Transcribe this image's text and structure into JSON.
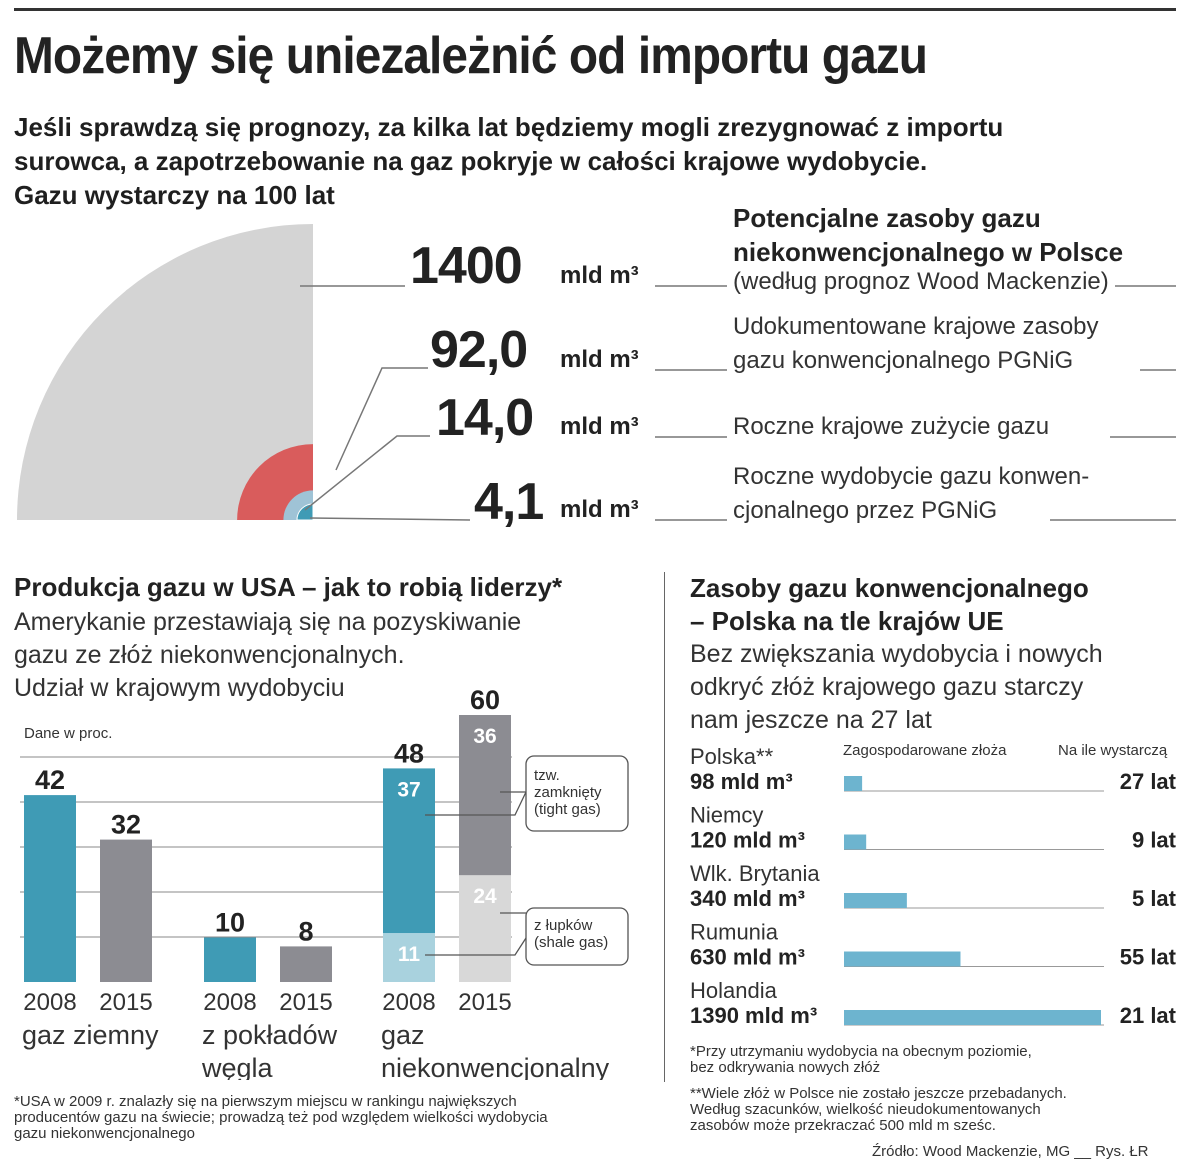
{
  "header": {
    "title": "Możemy się uniezależnić od importu gazu",
    "subtitle_lines": [
      "Jeśli sprawdzą się prognozy, za kilka lat będziemy mogli zrezygnować z importu",
      "surowca, a zapotrzebowanie na gaz pokryje w całości krajowe wydobycie.",
      "Gazu wystarczy na 100 lat"
    ]
  },
  "colors": {
    "gray_quarter": "#d4d4d4",
    "red_quarter": "#d95c5c",
    "teal": "#3f9bb5",
    "dark_gray": "#8c8c92",
    "light_teal": "#a9d2de",
    "light_gray": "#d8d8d8",
    "bar_blue": "#6db4cf"
  },
  "resources": {
    "unit": "mld m³",
    "items": [
      {
        "value": "1400",
        "desc_bold_lines": [
          "Potencjalne zasoby gazu",
          "niekonwencjonalnego w Polsce"
        ],
        "desc_lines": [
          "(według prognoz Wood Mackenzie)"
        ]
      },
      {
        "value": "92,0",
        "desc_lines": [
          "Udokumentowane krajowe zasoby",
          "gazu konwencjonalnego PGNiG"
        ]
      },
      {
        "value": "14,0",
        "desc_lines": [
          "Roczne krajowe zużycie gazu"
        ]
      },
      {
        "value": "4,1",
        "desc_lines": [
          "Roczne wydobycie gazu konwen-",
          "cjonalnego przez PGNiG"
        ]
      }
    ]
  },
  "usa": {
    "title": "Produkcja gazu w USA – jak to robią liderzy*",
    "subtitle_lines": [
      "Amerykanie przestawiają się na pozyskiwanie",
      "gazu ze złóż niekonwencjonalnych.",
      "Udział w krajowym wydobyciu"
    ],
    "unit_note": "Dane w proc.",
    "callout_tight": [
      "tzw.",
      "zamknięty",
      "(tight gas)"
    ],
    "callout_shale": [
      "z łupków",
      "(shale gas)"
    ],
    "footnote_lines": [
      "*USA w 2009 r. znalazły się na  pierwszym miejscu w rankingu największych",
      "producentów gazu na świecie; prowadzą też pod względem wielkości wydobycia",
      "gazu niekonwencjonalnego"
    ]
  },
  "eu": {
    "title_lines": [
      "Zasoby gazu konwencjonalnego",
      "– Polska na tle krajów UE"
    ],
    "subtitle_lines": [
      "Bez zwiększania wydobycia i nowych",
      "odkryć złóż krajowego gazu starczy",
      "nam jeszcze na 27 lat"
    ],
    "col_fields": "Zagospodarowane złoża",
    "col_years": "Na ile wystarczą",
    "footnote1_lines": [
      "*Przy utrzymaniu wydobycia na obecnym poziomie,",
      "bez odkrywania nowych złóż"
    ],
    "footnote2_lines": [
      "**Wiele złóż w Polsce nie zostało jeszcze przebadanych.",
      "Według szacunków, wielkość nieudokumentowanych",
      " zasobów może przekraczać  500 mld m sześc."
    ]
  },
  "source": "Źródło: Wood Mackenzie, MG __ Rys. ŁR",
  "chart_data": [
    {
      "type": "area",
      "title": "Potencjalne zasoby gazu",
      "categories": [
        "Potencjalne zasoby gazu niekonwencjonalnego w Polsce",
        "Udokumentowane krajowe zasoby gazu konwencjonalnego PGNiG",
        "Roczne krajowe zużycie gazu",
        "Roczne wydobycie gazu konwencjonalnego przez PGNiG"
      ],
      "values": [
        1400,
        92.0,
        14.0,
        4.1
      ],
      "unit": "mld m³"
    },
    {
      "type": "bar",
      "title": "Produkcja gazu w USA – udział w krajowym wydobyciu (proc.)",
      "groups": [
        {
          "label_lines": [
            "gaz ziemny"
          ],
          "bars": [
            {
              "year": "2008",
              "total": 42,
              "segments": [
                {
                  "name": "gaz ziemny",
                  "value": 42
                }
              ]
            },
            {
              "year": "2015",
              "total": 32,
              "segments": [
                {
                  "name": "gaz ziemny",
                  "value": 32
                }
              ]
            }
          ]
        },
        {
          "label_lines": [
            "z pokładów",
            "węgla"
          ],
          "bars": [
            {
              "year": "2008",
              "total": 10,
              "segments": [
                {
                  "name": "z pokładów węgla",
                  "value": 10
                }
              ]
            },
            {
              "year": "2015",
              "total": 8,
              "segments": [
                {
                  "name": "z pokładów węgla",
                  "value": 8
                }
              ]
            }
          ]
        },
        {
          "label_lines": [
            "gaz",
            "niekonwencjonalny"
          ],
          "bars": [
            {
              "year": "2008",
              "total": 48,
              "segments": [
                {
                  "name": "z łupków (shale gas)",
                  "value": 11
                },
                {
                  "name": "tzw. zamknięty (tight gas)",
                  "value": 37
                }
              ]
            },
            {
              "year": "2015",
              "total": 60,
              "segments": [
                {
                  "name": "z łupków (shale gas)",
                  "value": 24
                },
                {
                  "name": "tzw. zamknięty (tight gas)",
                  "value": 36
                }
              ]
            }
          ]
        }
      ],
      "ylim": [
        0,
        60
      ]
    },
    {
      "type": "bar",
      "orientation": "horizontal",
      "title": "Zasoby gazu konwencjonalnego – Polska na tle krajów UE",
      "categories": [
        "Polska**",
        "Niemcy",
        "Wlk. Brytania",
        "Rumunia",
        "Holandia"
      ],
      "values": [
        98,
        120,
        340,
        630,
        1390
      ],
      "value_labels": [
        "98 mld m³",
        "120 mld m³",
        "340 mld m³",
        "630 mld m³",
        "1390 mld m³"
      ],
      "years": [
        "27 lat",
        "9 lat",
        "5 lat",
        "55 lat",
        "21 lat"
      ],
      "xlim": [
        0,
        1390
      ]
    }
  ]
}
